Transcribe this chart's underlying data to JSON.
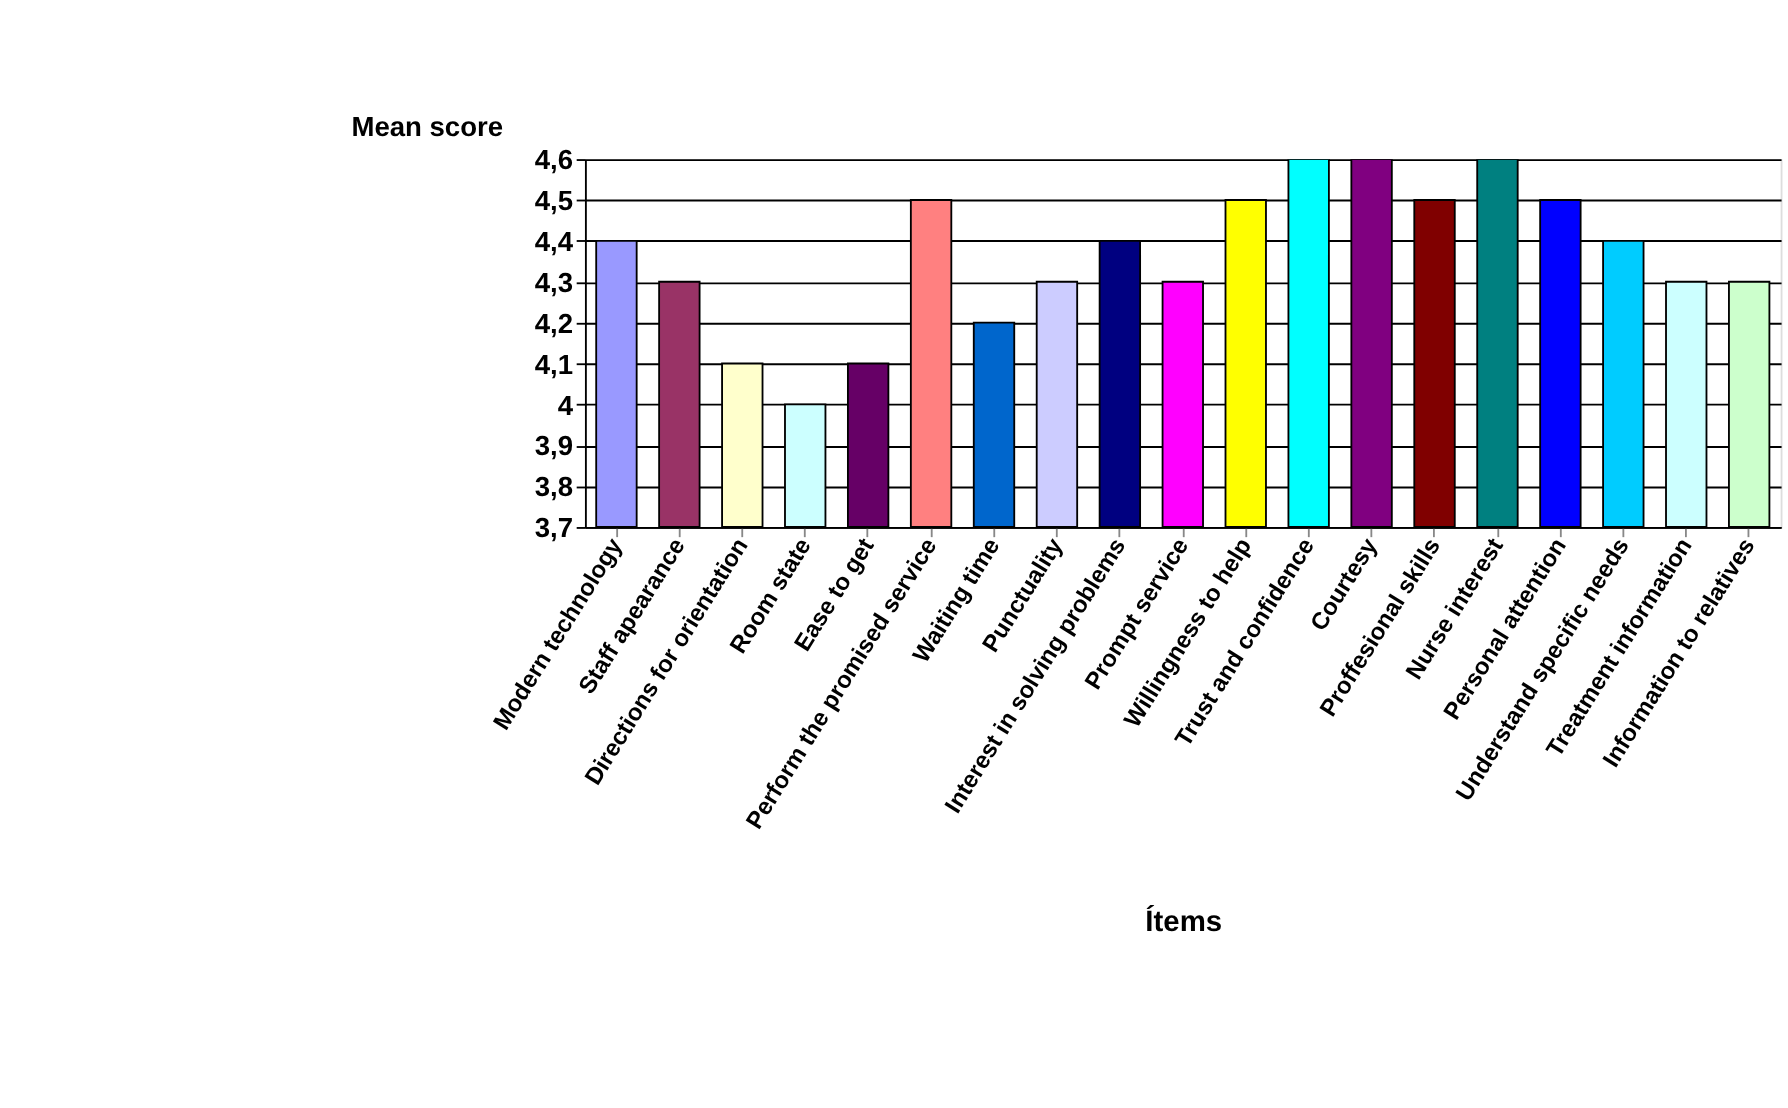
{
  "chart_data": {
    "type": "bar",
    "ylabel": "Mean score",
    "xlabel": "Ítems",
    "categories": [
      "Modern technology",
      "Staff apearance",
      "Directions for orientation",
      "Room state",
      "Ease to get",
      "Perform the promised service",
      "Waiting time",
      "Punctuality",
      "Interest in solving problems",
      "Prompt service",
      "Willingness to help",
      "Trust and confidence",
      "Courtesy",
      "Proffesional skills",
      "Nurse interest",
      "Personal attention",
      "Understand specific needs",
      "Treatment information",
      "Information to relatives"
    ],
    "values": [
      4.4,
      4.3,
      4.1,
      4.0,
      4.1,
      4.5,
      4.2,
      4.3,
      4.4,
      4.3,
      4.5,
      4.6,
      4.6,
      4.5,
      4.6,
      4.5,
      4.4,
      4.3,
      4.3
    ],
    "colors": [
      "#9999ff",
      "#993366",
      "#ffffcc",
      "#ccffff",
      "#660066",
      "#ff8080",
      "#0066cc",
      "#ccccff",
      "#000080",
      "#ff00ff",
      "#ffff00",
      "#00ffff",
      "#800080",
      "#800000",
      "#008080",
      "#0000ff",
      "#00ccff",
      "#ccffff",
      "#ccffcc"
    ],
    "ylim": [
      3.7,
      4.6
    ],
    "yticks": [
      {
        "value": 3.7,
        "label": "3,7"
      },
      {
        "value": 3.8,
        "label": "3,8"
      },
      {
        "value": 3.9,
        "label": "3,9"
      },
      {
        "value": 4.0,
        "label": "4"
      },
      {
        "value": 4.1,
        "label": "4,1"
      },
      {
        "value": 4.2,
        "label": "4,2"
      },
      {
        "value": 4.3,
        "label": "4,3"
      },
      {
        "value": 4.4,
        "label": "4,4"
      },
      {
        "value": 4.5,
        "label": "4,5"
      },
      {
        "value": 4.6,
        "label": "4,6"
      }
    ],
    "grid": "y",
    "legend": false
  }
}
